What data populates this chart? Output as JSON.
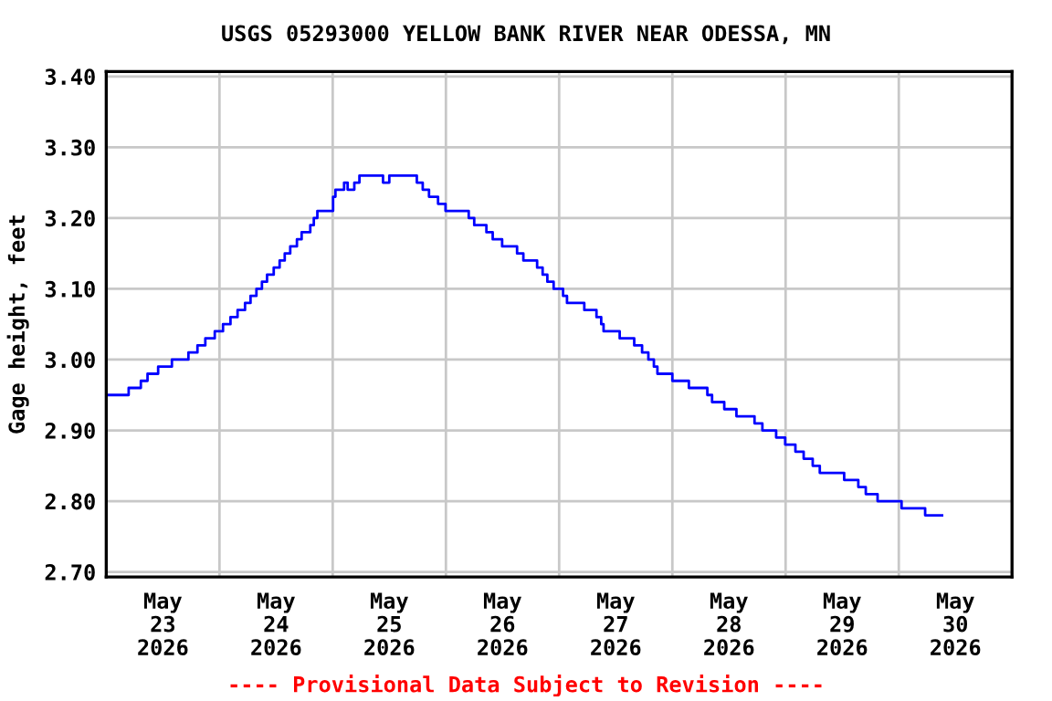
{
  "chart_data": {
    "type": "step",
    "title": "USGS 05293000 YELLOW BANK RIVER NEAR ODESSA, MN",
    "ylabel": "Gage height, feet",
    "annotations": [
      "---- Provisional Data Subject to Revision ----"
    ],
    "xlim": [
      "2026-05-23T00:00",
      "2026-05-31T00:00"
    ],
    "ylim": [
      2.693,
      3.407
    ],
    "yticks": [
      {
        "value": 2.7,
        "label": "2.70"
      },
      {
        "value": 2.8,
        "label": "2.80"
      },
      {
        "value": 2.9,
        "label": "2.90"
      },
      {
        "value": 3.0,
        "label": "3.00"
      },
      {
        "value": 3.1,
        "label": "3.10"
      },
      {
        "value": 3.2,
        "label": "3.20"
      },
      {
        "value": 3.3,
        "label": "3.30"
      },
      {
        "value": 3.4,
        "label": "3.40"
      }
    ],
    "xticks": [
      {
        "value": "2026-05-23T12:00",
        "label": "May\n23\n2026"
      },
      {
        "value": "2026-05-24T00:00",
        "label": null
      },
      {
        "value": "2026-05-24T12:00",
        "label": "May\n24\n2026"
      },
      {
        "value": "2026-05-25T00:00",
        "label": null
      },
      {
        "value": "2026-05-25T12:00",
        "label": "May\n25\n2026"
      },
      {
        "value": "2026-05-26T00:00",
        "label": null
      },
      {
        "value": "2026-05-26T12:00",
        "label": "May\n26\n2026"
      },
      {
        "value": "2026-05-27T00:00",
        "label": null
      },
      {
        "value": "2026-05-27T12:00",
        "label": "May\n27\n2026"
      },
      {
        "value": "2026-05-28T00:00",
        "label": null
      },
      {
        "value": "2026-05-28T12:00",
        "label": "May\n28\n2026"
      },
      {
        "value": "2026-05-29T00:00",
        "label": null
      },
      {
        "value": "2026-05-29T12:00",
        "label": "May\n29\n2026"
      },
      {
        "value": "2026-05-30T00:00",
        "label": null
      },
      {
        "value": "2026-05-30T12:00",
        "label": "May\n30\n2026"
      }
    ],
    "grid": true,
    "legend": false,
    "series": [
      {
        "color": "#0000ff",
        "x": [
          "2026-05-23T00:00",
          "2026-05-23T04:45",
          "2026-05-23T07:20",
          "2026-05-23T08:45",
          "2026-05-23T11:00",
          "2026-05-23T13:55",
          "2026-05-23T17:25",
          "2026-05-23T19:20",
          "2026-05-23T21:00",
          "2026-05-23T23:00",
          "2026-05-24T00:45",
          "2026-05-24T02:20",
          "2026-05-24T03:50",
          "2026-05-24T05:25",
          "2026-05-24T06:35",
          "2026-05-24T07:50",
          "2026-05-24T09:00",
          "2026-05-24T10:05",
          "2026-05-24T11:30",
          "2026-05-24T12:45",
          "2026-05-24T13:50",
          "2026-05-24T15:00",
          "2026-05-24T16:25",
          "2026-05-24T17:25",
          "2026-05-24T19:15",
          "2026-05-24T20:00",
          "2026-05-24T20:45",
          "2026-05-25T00:05",
          "2026-05-25T00:35",
          "2026-05-25T02:25",
          "2026-05-25T03:10",
          "2026-05-25T04:35",
          "2026-05-25T05:40",
          "2026-05-25T10:40",
          "2026-05-25T12:00",
          "2026-05-25T17:50",
          "2026-05-25T19:05",
          "2026-05-25T20:25",
          "2026-05-25T22:20",
          "2026-05-25T23:55",
          "2026-05-26T04:50",
          "2026-05-26T06:00",
          "2026-05-26T08:35",
          "2026-05-26T09:55",
          "2026-05-26T11:55",
          "2026-05-26T15:05",
          "2026-05-26T16:25",
          "2026-05-26T19:20",
          "2026-05-26T20:30",
          "2026-05-26T21:30",
          "2026-05-26T22:50",
          "2026-05-27T00:50",
          "2026-05-27T01:40",
          "2026-05-27T05:20",
          "2026-05-27T07:55",
          "2026-05-27T08:55",
          "2026-05-27T09:25",
          "2026-05-27T12:50",
          "2026-05-27T15:55",
          "2026-05-27T17:35",
          "2026-05-27T18:55",
          "2026-05-27T20:05",
          "2026-05-27T20:50",
          "2026-05-28T00:00",
          "2026-05-28T03:30",
          "2026-05-28T07:25",
          "2026-05-28T08:25",
          "2026-05-28T11:00",
          "2026-05-28T13:35",
          "2026-05-28T17:25",
          "2026-05-28T19:05",
          "2026-05-28T22:00",
          "2026-05-28T23:55",
          "2026-05-29T02:05",
          "2026-05-29T03:50",
          "2026-05-29T05:45",
          "2026-05-29T07:15",
          "2026-05-29T12:25",
          "2026-05-29T15:25",
          "2026-05-29T17:00",
          "2026-05-29T19:30",
          "2026-05-30T00:35",
          "2026-05-30T05:35",
          "2026-05-30T09:10"
        ],
        "values": [
          2.95,
          2.96,
          2.97,
          2.98,
          2.99,
          3.0,
          3.01,
          3.02,
          3.03,
          3.04,
          3.05,
          3.06,
          3.07,
          3.08,
          3.09,
          3.1,
          3.11,
          3.12,
          3.13,
          3.14,
          3.15,
          3.16,
          3.17,
          3.18,
          3.19,
          3.2,
          3.21,
          3.23,
          3.24,
          3.25,
          3.24,
          3.25,
          3.26,
          3.25,
          3.26,
          3.25,
          3.24,
          3.23,
          3.22,
          3.21,
          3.2,
          3.19,
          3.18,
          3.17,
          3.16,
          3.15,
          3.14,
          3.13,
          3.12,
          3.11,
          3.1,
          3.09,
          3.08,
          3.07,
          3.06,
          3.05,
          3.04,
          3.03,
          3.02,
          3.01,
          3.0,
          2.99,
          2.98,
          2.97,
          2.96,
          2.95,
          2.94,
          2.93,
          2.92,
          2.91,
          2.9,
          2.89,
          2.88,
          2.87,
          2.86,
          2.85,
          2.84,
          2.83,
          2.82,
          2.81,
          2.8,
          2.79,
          2.78,
          2.78
        ]
      }
    ]
  }
}
